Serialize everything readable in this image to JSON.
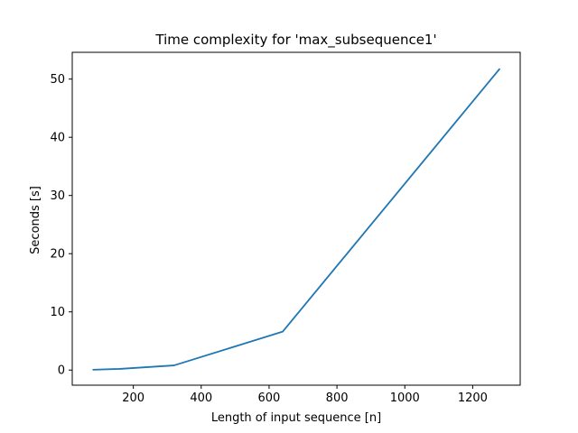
{
  "chart_data": {
    "type": "line",
    "title": "Time complexity for 'max_subsequence1'",
    "xlabel": "Length of input sequence [n]",
    "ylabel": "Seconds [s]",
    "xlim": [
      20,
      1340
    ],
    "ylim": [
      -2.6,
      54.6
    ],
    "xticks": [
      200,
      400,
      600,
      800,
      1000,
      1200
    ],
    "yticks": [
      0,
      10,
      20,
      30,
      40,
      50
    ],
    "grid": false,
    "series": [
      {
        "color": "#1f77b4",
        "x": [
          80,
          160,
          320,
          640,
          1280
        ],
        "y": [
          0.05,
          0.2,
          0.8,
          6.6,
          51.8
        ]
      }
    ]
  }
}
